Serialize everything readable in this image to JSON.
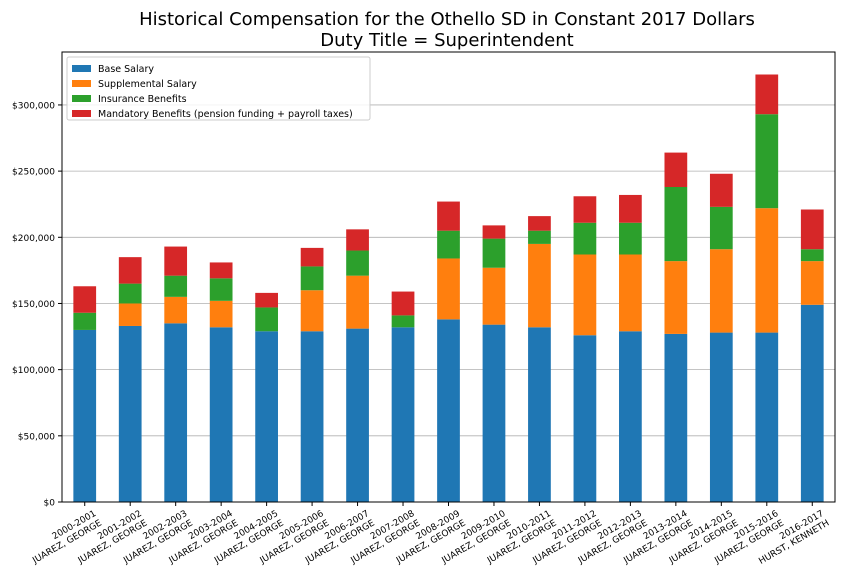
{
  "chart_data": {
    "type": "bar",
    "stacked": true,
    "title": "Historical Compensation for the Othello SD in Constant 2017 Dollars",
    "subtitle": "Duty Title = Superintendent",
    "xlabel": "",
    "ylabel": "",
    "ylim": [
      0,
      340000
    ],
    "yticks": [
      0,
      50000,
      100000,
      150000,
      200000,
      250000,
      300000
    ],
    "ytick_labels": [
      "$0",
      "$50,000",
      "$100,000",
      "$150,000",
      "$200,000",
      "$250,000",
      "$300,000"
    ],
    "grid": "y",
    "legend_position": "top-left",
    "categories": [
      [
        "2000-2001",
        "JUAREZ, GEORGE"
      ],
      [
        "2001-2002",
        "JUAREZ, GEORGE"
      ],
      [
        "2002-2003",
        "JUAREZ, GEORGE"
      ],
      [
        "2003-2004",
        "JUAREZ, GEORGE"
      ],
      [
        "2004-2005",
        "JUAREZ, GEORGE"
      ],
      [
        "2005-2006",
        "JUAREZ, GEORGE"
      ],
      [
        "2006-2007",
        "JUAREZ, GEORGE"
      ],
      [
        "2007-2008",
        "JUAREZ, GEORGE"
      ],
      [
        "2008-2009",
        "JUAREZ, GEORGE"
      ],
      [
        "2009-2010",
        "JUAREZ, GEORGE"
      ],
      [
        "2010-2011",
        "JUAREZ, GEORGE"
      ],
      [
        "2011-2012",
        "JUAREZ, GEORGE"
      ],
      [
        "2012-2013",
        "JUAREZ, GEORGE"
      ],
      [
        "2013-2014",
        "JUAREZ, GEORGE"
      ],
      [
        "2014-2015",
        "JUAREZ, GEORGE"
      ],
      [
        "2015-2016",
        "JUAREZ, GEORGE"
      ],
      [
        "2016-2017",
        "HURST, KENNETH"
      ]
    ],
    "series": [
      {
        "name": "Base Salary",
        "color": "#1f77b4",
        "values": [
          130000,
          133000,
          135000,
          132000,
          129000,
          129000,
          131000,
          132000,
          138000,
          134000,
          132000,
          126000,
          129000,
          127000,
          128000,
          128000,
          149000
        ]
      },
      {
        "name": "Supplemental Salary",
        "color": "#ff7f0e",
        "values": [
          0,
          17000,
          20000,
          20000,
          0,
          31000,
          40000,
          0,
          46000,
          43000,
          63000,
          61000,
          58000,
          55000,
          63000,
          94000,
          33000
        ]
      },
      {
        "name": "Insurance Benefits",
        "color": "#2ca02c",
        "values": [
          13000,
          15000,
          16000,
          17000,
          18000,
          18000,
          19000,
          9000,
          21000,
          22000,
          10000,
          24000,
          24000,
          56000,
          32000,
          71000,
          9000
        ]
      },
      {
        "name": "Mandatory Benefits (pension funding + payroll taxes)",
        "color": "#d62728",
        "values": [
          20000,
          20000,
          22000,
          12000,
          11000,
          14000,
          16000,
          18000,
          22000,
          10000,
          11000,
          20000,
          21000,
          26000,
          25000,
          30000,
          30000
        ]
      }
    ]
  }
}
